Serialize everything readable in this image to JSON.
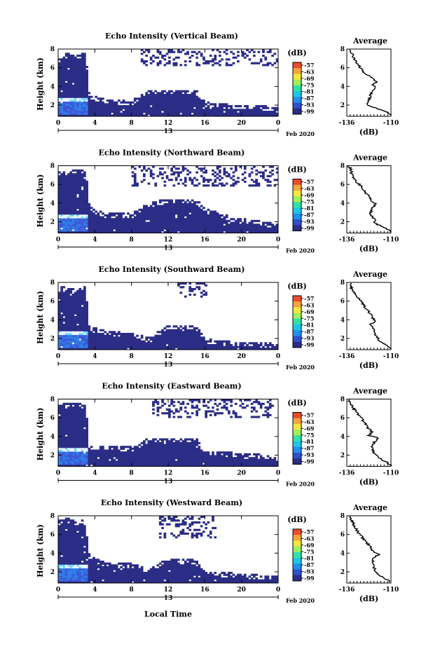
{
  "colorbar_unit": "(dB)",
  "colorbar_ticks": [
    "-57",
    "-63",
    "-69",
    "-75",
    "-81",
    "-87",
    "-93",
    "-99"
  ],
  "colorbar_colors": [
    "#2b2d86",
    "#2f4fd0",
    "#1f8ff0",
    "#19c8e6",
    "#2fe2a8",
    "#9cf05a",
    "#f2e83a",
    "#f7a43a",
    "#ee4b2e"
  ],
  "no_echo_color": "#ffffff",
  "echo_base_color": "#2b2d86",
  "date_label": "Feb 2020",
  "day_label": "13",
  "xlabel": "Local Time",
  "ylabel": "Height (km)",
  "average_title": "Average",
  "average_xlabel": "(dB)",
  "chart_data": [
    {
      "type": "heatmap",
      "title": "Echo Intensity (Vertical Beam)",
      "x_ticks": [
        "0",
        "4",
        "8",
        "12",
        "16",
        "20",
        "0"
      ],
      "x_range": [
        0,
        24
      ],
      "y_ticks": [
        "2",
        "4",
        "6",
        "8"
      ],
      "y_range": [
        0.8,
        8.0
      ],
      "echo_top_km": [
        [
          0,
          7.0
        ],
        [
          1,
          7.5
        ],
        [
          2,
          7.2
        ],
        [
          3,
          7.6
        ],
        [
          3.4,
          3.0
        ],
        [
          5,
          2.6
        ],
        [
          8,
          2.4
        ],
        [
          10,
          3.5
        ],
        [
          12,
          3.6
        ],
        [
          15,
          3.6
        ],
        [
          16,
          2.3
        ],
        [
          19,
          2.0
        ],
        [
          22,
          1.9
        ],
        [
          24,
          1.6
        ]
      ],
      "upper_layer_km": [
        6.2,
        8.0
      ],
      "upper_layer_hours": [
        9,
        24
      ],
      "bright_band_km": 2.5,
      "bright_band_hours": [
        0,
        3.2
      ],
      "average": {
        "x_ticks": [
          "-136",
          "-110"
        ],
        "x_range": [
          -136,
          -110
        ],
        "profile": [
          [
            0.9,
            -109.5
          ],
          [
            1.2,
            -112
          ],
          [
            1.6,
            -118
          ],
          [
            2.0,
            -124
          ],
          [
            2.4,
            -123
          ],
          [
            3.0,
            -122
          ],
          [
            3.5,
            -121
          ],
          [
            3.9,
            -119
          ],
          [
            4.2,
            -121
          ],
          [
            4.5,
            -118
          ],
          [
            4.9,
            -121
          ],
          [
            5.3,
            -125
          ],
          [
            6.0,
            -128
          ],
          [
            6.8,
            -131
          ],
          [
            7.5,
            -133
          ],
          [
            8.0,
            -134
          ]
        ]
      }
    },
    {
      "type": "heatmap",
      "title": "Echo Intensity (Northward Beam)",
      "x_ticks": [
        "0",
        "4",
        "8",
        "12",
        "16",
        "20",
        "0"
      ],
      "x_range": [
        0,
        24
      ],
      "y_ticks": [
        "2",
        "4",
        "6",
        "8"
      ],
      "y_range": [
        0.8,
        8.0
      ],
      "echo_top_km": [
        [
          0,
          7.5
        ],
        [
          1,
          7.2
        ],
        [
          2,
          7.6
        ],
        [
          3,
          7.4
        ],
        [
          3.4,
          3.6
        ],
        [
          5,
          2.9
        ],
        [
          8,
          2.8
        ],
        [
          10,
          4.0
        ],
        [
          12,
          4.4
        ],
        [
          15,
          4.4
        ],
        [
          16,
          3.4
        ],
        [
          19,
          2.4
        ],
        [
          22,
          2.0
        ],
        [
          24,
          1.7
        ]
      ],
      "upper_layer_km": [
        5.8,
        8.0
      ],
      "upper_layer_hours": [
        8,
        24
      ],
      "bright_band_km": 2.5,
      "bright_band_hours": [
        0,
        3.2
      ],
      "average": {
        "x_ticks": [
          "-136",
          "-110"
        ],
        "x_range": [
          -136,
          -110
        ],
        "profile": [
          [
            0.9,
            -110
          ],
          [
            1.3,
            -113
          ],
          [
            1.8,
            -119
          ],
          [
            2.3,
            -120
          ],
          [
            2.9,
            -122
          ],
          [
            3.4,
            -121
          ],
          [
            3.9,
            -119
          ],
          [
            4.2,
            -122
          ],
          [
            4.6,
            -122
          ],
          [
            5.1,
            -125
          ],
          [
            5.7,
            -127
          ],
          [
            6.4,
            -131
          ],
          [
            7.1,
            -133
          ],
          [
            7.7,
            -134
          ],
          [
            8.0,
            -135
          ]
        ]
      }
    },
    {
      "type": "heatmap",
      "title": "Echo Intensity (Southward Beam)",
      "x_ticks": [
        "0",
        "4",
        "8",
        "12",
        "16",
        "20",
        "0"
      ],
      "x_range": [
        0,
        24
      ],
      "y_ticks": [
        "2",
        "4",
        "6",
        "8"
      ],
      "y_range": [
        0.8,
        8.0
      ],
      "echo_top_km": [
        [
          0,
          7.3
        ],
        [
          1,
          7.6
        ],
        [
          2,
          7.1
        ],
        [
          3,
          7.5
        ],
        [
          3.4,
          3.2
        ],
        [
          5,
          2.8
        ],
        [
          8,
          2.5
        ],
        [
          10,
          2.0
        ],
        [
          12,
          3.4
        ],
        [
          15,
          3.4
        ],
        [
          16,
          1.9
        ],
        [
          19,
          1.6
        ],
        [
          22,
          1.5
        ],
        [
          24,
          1.4
        ]
      ],
      "upper_layer_km": [
        6.4,
        8.0
      ],
      "upper_layer_hours": [
        13,
        16
      ],
      "bright_band_km": 2.5,
      "bright_band_hours": [
        0,
        3.2
      ],
      "average": {
        "x_ticks": [
          "-136",
          "-110"
        ],
        "x_range": [
          -136,
          -110
        ],
        "profile": [
          [
            0.9,
            -110
          ],
          [
            1.3,
            -113
          ],
          [
            1.8,
            -117
          ],
          [
            2.4,
            -119
          ],
          [
            3.0,
            -120
          ],
          [
            3.5,
            -122
          ],
          [
            3.9,
            -119
          ],
          [
            4.2,
            -121
          ],
          [
            4.6,
            -122
          ],
          [
            5.1,
            -124
          ],
          [
            5.8,
            -127
          ],
          [
            6.5,
            -130
          ],
          [
            7.2,
            -133
          ],
          [
            7.8,
            -134
          ],
          [
            8.0,
            -134
          ]
        ]
      }
    },
    {
      "type": "heatmap",
      "title": "Echo Intensity (Eastward Beam)",
      "x_ticks": [
        "0",
        "4",
        "8",
        "12",
        "16",
        "20",
        "0"
      ],
      "x_range": [
        0,
        24
      ],
      "y_ticks": [
        "2",
        "4",
        "6",
        "8"
      ],
      "y_range": [
        0.8,
        8.0
      ],
      "echo_top_km": [
        [
          0,
          7.6
        ],
        [
          1,
          7.4
        ],
        [
          2,
          7.6
        ],
        [
          3,
          7.2
        ],
        [
          3.4,
          3.0
        ],
        [
          5,
          3.0
        ],
        [
          8,
          2.8
        ],
        [
          10,
          3.8
        ],
        [
          12,
          3.7
        ],
        [
          15,
          3.8
        ],
        [
          16,
          2.4
        ],
        [
          19,
          2.2
        ],
        [
          22,
          2.0
        ],
        [
          24,
          1.7
        ]
      ],
      "upper_layer_km": [
        6.0,
        8.0
      ],
      "upper_layer_hours": [
        10,
        24
      ],
      "bright_band_km": 2.5,
      "bright_band_hours": [
        0,
        3.2
      ],
      "average": {
        "x_ticks": [
          "-136",
          "-110"
        ],
        "x_range": [
          -136,
          -110
        ],
        "profile": [
          [
            0.9,
            -110
          ],
          [
            1.3,
            -113
          ],
          [
            1.8,
            -118
          ],
          [
            2.3,
            -120
          ],
          [
            2.9,
            -121
          ],
          [
            3.4,
            -120
          ],
          [
            3.8,
            -117
          ],
          [
            4.1,
            -123
          ],
          [
            4.5,
            -121
          ],
          [
            5.0,
            -124
          ],
          [
            5.6,
            -126
          ],
          [
            6.3,
            -129
          ],
          [
            7.0,
            -132
          ],
          [
            7.6,
            -134
          ],
          [
            8.0,
            -135
          ]
        ]
      }
    },
    {
      "type": "heatmap",
      "title": "Echo Intensity (Westward Beam)",
      "x_ticks": [
        "0",
        "4",
        "8",
        "12",
        "16",
        "20",
        "0"
      ],
      "x_range": [
        0,
        24
      ],
      "y_ticks": [
        "2",
        "4",
        "6",
        "8"
      ],
      "y_range": [
        0.8,
        8.0
      ],
      "echo_top_km": [
        [
          0,
          7.4
        ],
        [
          1,
          7.7
        ],
        [
          2,
          7.3
        ],
        [
          3,
          7.5
        ],
        [
          3.4,
          3.6
        ],
        [
          5,
          3.0
        ],
        [
          8,
          2.8
        ],
        [
          10,
          2.2
        ],
        [
          12,
          3.4
        ],
        [
          15,
          3.2
        ],
        [
          16,
          2.0
        ],
        [
          19,
          1.8
        ],
        [
          22,
          1.6
        ],
        [
          24,
          1.5
        ]
      ],
      "upper_layer_km": [
        5.6,
        8.0
      ],
      "upper_layer_hours": [
        11,
        17
      ],
      "bright_band_km": 2.5,
      "bright_band_hours": [
        0,
        3.2
      ],
      "average": {
        "x_ticks": [
          "-136",
          "-110"
        ],
        "x_range": [
          -136,
          -110
        ],
        "profile": [
          [
            0.9,
            -110
          ],
          [
            1.3,
            -114
          ],
          [
            1.8,
            -118
          ],
          [
            2.4,
            -120
          ],
          [
            3.0,
            -121
          ],
          [
            3.5,
            -120
          ],
          [
            3.9,
            -117
          ],
          [
            4.2,
            -121
          ],
          [
            4.6,
            -122
          ],
          [
            5.1,
            -124
          ],
          [
            5.7,
            -127
          ],
          [
            6.4,
            -130
          ],
          [
            7.1,
            -132
          ],
          [
            7.7,
            -134
          ],
          [
            8.0,
            -134
          ]
        ]
      }
    }
  ]
}
